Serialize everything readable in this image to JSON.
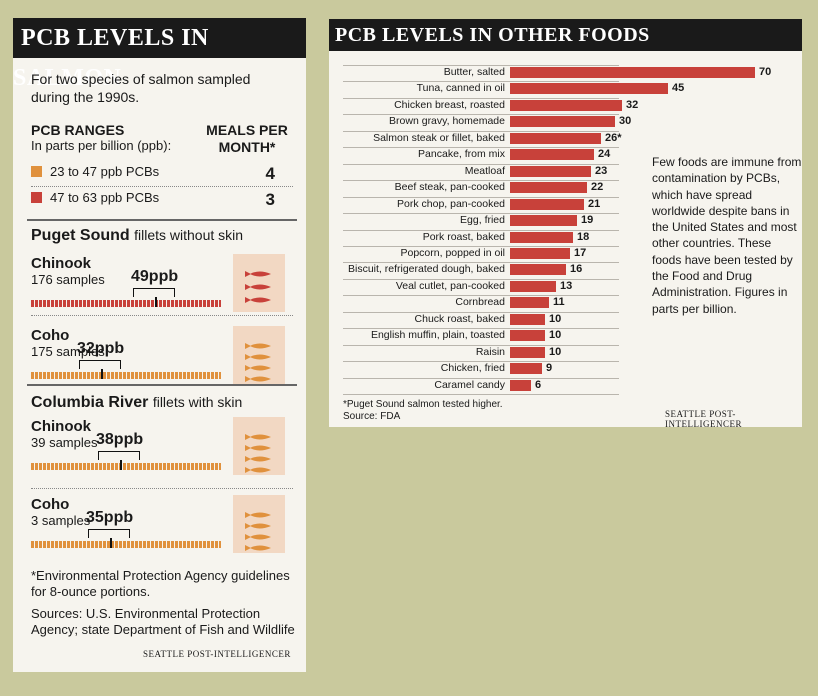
{
  "left": {
    "title": "PCB LEVELS IN SALMON",
    "intro": "For two species of salmon sampled during the 1990s.",
    "ranges_heading": "PCB RANGES",
    "ranges_sub": "In parts per billion (ppb):",
    "meals_heading": "MEALS PER MONTH*",
    "legend": [
      {
        "label": "23 to 47 ppb PCBs",
        "meals": "4",
        "color": "#e0913d"
      },
      {
        "label": "47 to 63 ppb PCBs",
        "meals": "3",
        "color": "#c8413a"
      }
    ],
    "sections": [
      {
        "place": "Puget Sound",
        "desc": "fillets without skin",
        "fish": [
          {
            "name": "Chinook",
            "samples": "176 samples",
            "label": "49ppb",
            "value": 49,
            "tier": "high"
          },
          {
            "name": "Coho",
            "samples": "175 samples",
            "label": "32ppb",
            "value": 32,
            "tier": "low"
          }
        ]
      },
      {
        "place": "Columbia River",
        "desc": "fillets with skin",
        "fish": [
          {
            "name": "Chinook",
            "samples": "39 samples",
            "label": "38ppb",
            "value": 38,
            "tier": "low"
          },
          {
            "name": "Coho",
            "samples": "3 samples",
            "label": "35ppb",
            "value": 35,
            "tier": "low"
          }
        ]
      }
    ],
    "footnote": "*Environmental Protection Agency guidelines for 8-ounce portions.",
    "sources": "Sources: U.S. Environmental Protection Agency; state Department of Fish and Wildlife",
    "credit": "SEATTLE POST-INTELLIGENCER"
  },
  "right": {
    "title": "PCB LEVELS IN OTHER FOODS",
    "note": "Few foods are immune from contamination by PCBs, which have spread worldwide despite bans in the United States and most other countries. These foods have been tested by the Food and Drug Administration. Figures in parts per billion.",
    "footnote": "*Puget Sound salmon tested higher.",
    "source": "Source: FDA",
    "credit": "SEATTLE POST-INTELLIGENCER"
  },
  "colors": {
    "bar": "#c8413a",
    "low": "#e0913d",
    "high": "#c8413a"
  },
  "chart_data": {
    "type": "bar",
    "orientation": "horizontal",
    "title": "PCB LEVELS IN OTHER FOODS",
    "categories": [
      "Butter, salted",
      "Tuna, canned in oil",
      "Chicken breast, roasted",
      "Brown gravy, homemade",
      "Salmon steak or fillet, baked",
      "Pancake, from mix",
      "Meatloaf",
      "Beef steak, pan-cooked",
      "Pork chop, pan-cooked",
      "Egg, fried",
      "Pork roast, baked",
      "Popcorn, popped in oil",
      "Biscuit, refrigerated dough, baked",
      "Veal cutlet, pan-cooked",
      "Cornbread",
      "Chuck roast, baked",
      "English muffin, plain, toasted",
      "Raisin",
      "Chicken, fried",
      "Caramel candy"
    ],
    "values": [
      70,
      45,
      32,
      30,
      26,
      24,
      23,
      22,
      21,
      19,
      18,
      17,
      16,
      13,
      11,
      10,
      10,
      10,
      9,
      6
    ],
    "value_labels": [
      "70",
      "45",
      "32",
      "30",
      "26*",
      "24",
      "23",
      "22",
      "21",
      "19",
      "18",
      "17",
      "16",
      "13",
      "11",
      "10",
      "10",
      "10",
      "9",
      "6"
    ],
    "xlim": [
      0,
      70
    ]
  }
}
